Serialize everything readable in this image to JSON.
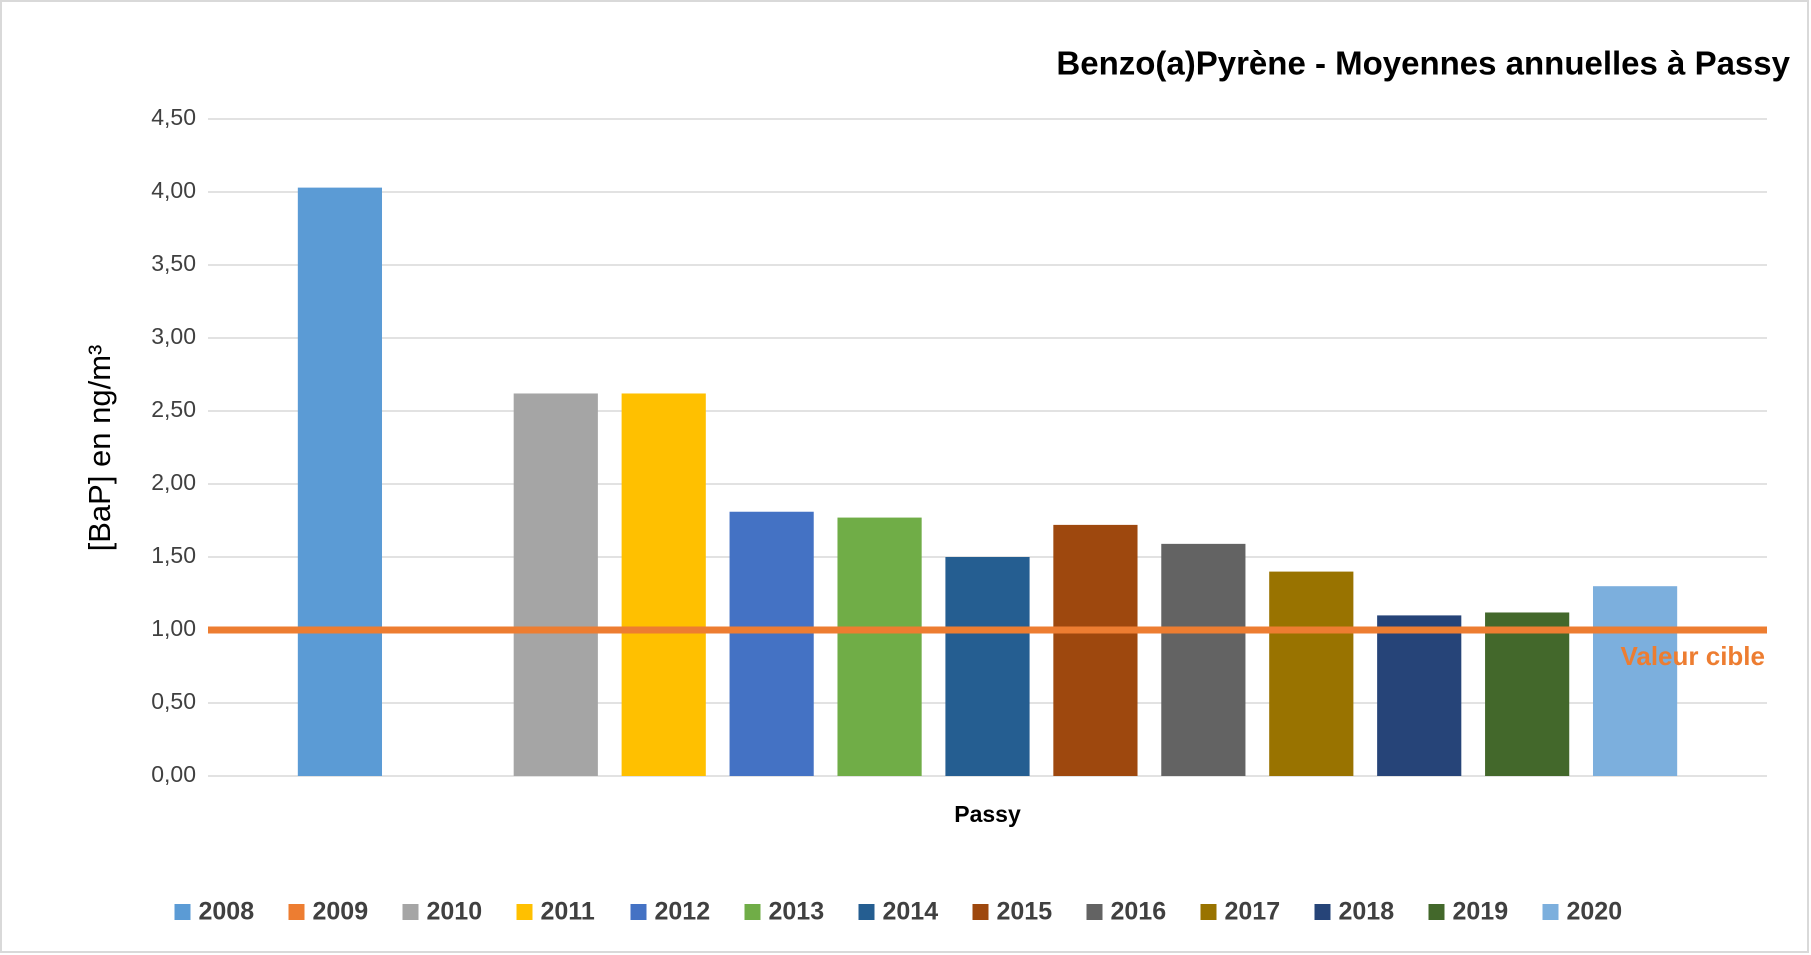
{
  "chart_data": {
    "type": "bar",
    "title": "Benzo(a)Pyrène - Moyennes annuelles à Passy",
    "y_label": "[BaP] en ng/m³",
    "categories": [
      "Passy"
    ],
    "series": [
      {
        "name": "2008",
        "color": "#5b9bd5",
        "values": [
          4.03
        ]
      },
      {
        "name": "2009",
        "color": "#ed7d31",
        "values": [
          null
        ]
      },
      {
        "name": "2010",
        "color": "#a5a5a5",
        "values": [
          2.62
        ]
      },
      {
        "name": "2011",
        "color": "#ffc000",
        "values": [
          2.62
        ]
      },
      {
        "name": "2012",
        "color": "#4472c4",
        "values": [
          1.81
        ]
      },
      {
        "name": "2013",
        "color": "#70ad47",
        "values": [
          1.77
        ]
      },
      {
        "name": "2014",
        "color": "#255e91",
        "values": [
          1.5
        ]
      },
      {
        "name": "2015",
        "color": "#9e480e",
        "values": [
          1.72
        ]
      },
      {
        "name": "2016",
        "color": "#636363",
        "values": [
          1.59
        ]
      },
      {
        "name": "2017",
        "color": "#997300",
        "values": [
          1.4
        ]
      },
      {
        "name": "2018",
        "color": "#264478",
        "values": [
          1.1
        ]
      },
      {
        "name": "2019",
        "color": "#43682b",
        "values": [
          1.12
        ]
      },
      {
        "name": "2020",
        "color": "#7cafdd",
        "values": [
          1.3
        ]
      }
    ],
    "target": {
      "value": 1,
      "label": "Valeur cible",
      "color": "#ed7d31"
    },
    "ylim": [
      0,
      4.5
    ],
    "yticks": [
      {
        "value": 0,
        "label": "0,00"
      },
      {
        "value": 0.5,
        "label": "0,50"
      },
      {
        "value": 1,
        "label": "1,00"
      },
      {
        "value": 1.5,
        "label": "1,50"
      },
      {
        "value": 2,
        "label": "2,00"
      },
      {
        "value": 2.5,
        "label": "2,50"
      },
      {
        "value": 3,
        "label": "3,00"
      },
      {
        "value": 3.5,
        "label": "3,50"
      },
      {
        "value": 4,
        "label": "4,00"
      },
      {
        "value": 4.5,
        "label": "4,50"
      }
    ],
    "grid": true,
    "legend": "bottom"
  }
}
